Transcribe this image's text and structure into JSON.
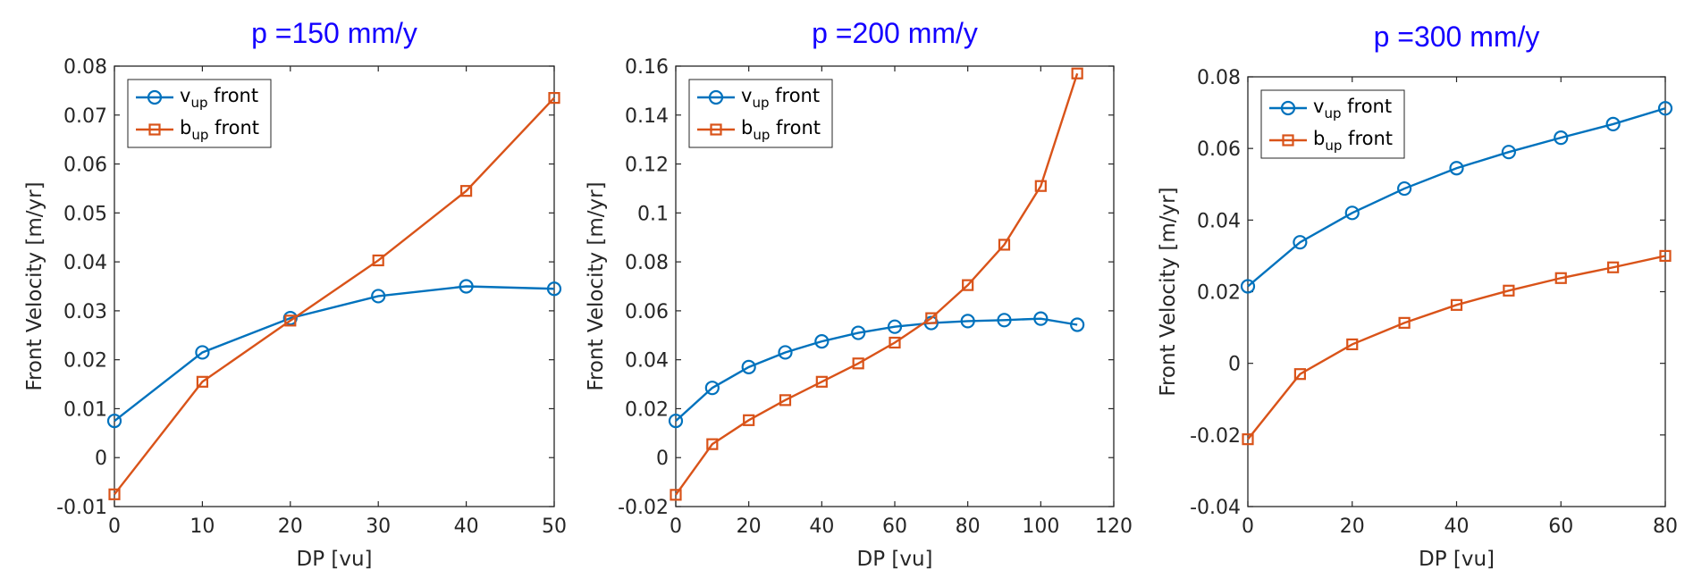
{
  "chart_data": [
    {
      "type": "line",
      "title": "p =150 mm/y",
      "xlabel": "DP [vu]",
      "ylabel": "Front Velocity [m/yr]",
      "xlim": [
        0,
        50
      ],
      "ylim": [
        -0.01,
        0.08
      ],
      "xticks": [
        0,
        10,
        20,
        30,
        40,
        50
      ],
      "xtick_labels": [
        "0",
        "10",
        "20",
        "30",
        "40",
        "50"
      ],
      "yticks": [
        -0.01,
        0,
        0.01,
        0.02,
        0.03,
        0.04,
        0.05,
        0.06,
        0.07,
        0.08
      ],
      "ytick_labels": [
        "-0.01",
        "0",
        "0.01",
        "0.02",
        "0.03",
        "0.04",
        "0.05",
        "0.06",
        "0.07",
        "0.08"
      ],
      "grid": false,
      "legend_position": "top-left",
      "x": [
        0,
        10,
        20,
        30,
        40,
        50
      ],
      "series": [
        {
          "name": "v",
          "subscript": "up",
          "suffix": " front",
          "color": "#0072bd",
          "marker": "circle",
          "values": [
            0.0075,
            0.0215,
            0.0285,
            0.033,
            0.035,
            0.0345
          ]
        },
        {
          "name": "b",
          "subscript": "up",
          "suffix": " front",
          "color": "#d95319",
          "marker": "square",
          "values": [
            -0.0075,
            0.0155,
            0.028,
            0.0403,
            0.0545,
            0.0735
          ]
        }
      ]
    },
    {
      "type": "line",
      "title": "p =200 mm/y",
      "xlabel": "DP [vu]",
      "ylabel": "Front Velocity [m/yr]",
      "xlim": [
        0,
        120
      ],
      "ylim": [
        -0.02,
        0.16
      ],
      "xticks": [
        0,
        20,
        40,
        60,
        80,
        100,
        120
      ],
      "xtick_labels": [
        "0",
        "20",
        "40",
        "60",
        "80",
        "100",
        "120"
      ],
      "yticks": [
        -0.02,
        0,
        0.02,
        0.04,
        0.06,
        0.08,
        0.1,
        0.12,
        0.14,
        0.16
      ],
      "ytick_labels": [
        "-0.02",
        "0",
        "0.02",
        "0.04",
        "0.06",
        "0.08",
        "0.1",
        "0.12",
        "0.14",
        "0.16"
      ],
      "grid": false,
      "legend_position": "top-left",
      "x": [
        0,
        10,
        20,
        30,
        40,
        50,
        60,
        70,
        80,
        90,
        100,
        110
      ],
      "series": [
        {
          "name": "v",
          "subscript": "up",
          "suffix": " front",
          "color": "#0072bd",
          "marker": "circle",
          "values": [
            0.015,
            0.0285,
            0.037,
            0.043,
            0.0475,
            0.051,
            0.0535,
            0.055,
            0.0558,
            0.0562,
            0.0568,
            0.0543
          ]
        },
        {
          "name": "b",
          "subscript": "up",
          "suffix": " front",
          "color": "#d95319",
          "marker": "square",
          "values": [
            -0.0152,
            0.0055,
            0.0153,
            0.0235,
            0.031,
            0.0385,
            0.047,
            0.057,
            0.0705,
            0.087,
            0.111,
            0.157
          ]
        }
      ]
    },
    {
      "type": "line",
      "title": "p =300 mm/y",
      "xlabel": "DP [vu]",
      "ylabel": "Front Velocity [m/yr]",
      "xlim": [
        0,
        80
      ],
      "ylim": [
        -0.04,
        0.08
      ],
      "xticks": [
        0,
        20,
        40,
        60,
        80
      ],
      "xtick_labels": [
        "0",
        "20",
        "40",
        "60",
        "80"
      ],
      "yticks": [
        -0.04,
        -0.02,
        0,
        0.02,
        0.04,
        0.06,
        0.08
      ],
      "ytick_labels": [
        "-0.04",
        "-0.02",
        "0",
        "0.02",
        "0.04",
        "0.06",
        "0.08"
      ],
      "grid": false,
      "legend_position": "top-left",
      "x": [
        0,
        10,
        20,
        30,
        40,
        50,
        60,
        70,
        80
      ],
      "series": [
        {
          "name": "v",
          "subscript": "up",
          "suffix": " front",
          "color": "#0072bd",
          "marker": "circle",
          "values": [
            0.0215,
            0.0338,
            0.042,
            0.0488,
            0.0545,
            0.059,
            0.063,
            0.0668,
            0.0712
          ]
        },
        {
          "name": "b",
          "subscript": "up",
          "suffix": " front",
          "color": "#d95319",
          "marker": "square",
          "values": [
            -0.0212,
            -0.003,
            0.0053,
            0.0113,
            0.0163,
            0.0203,
            0.0238,
            0.0268,
            0.03
          ]
        }
      ]
    }
  ]
}
